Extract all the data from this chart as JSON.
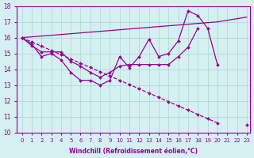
{
  "x": [
    0,
    1,
    2,
    3,
    4,
    5,
    6,
    7,
    8,
    9,
    10,
    11,
    12,
    13,
    14,
    15,
    16,
    17,
    18,
    19,
    20,
    21,
    22,
    23
  ],
  "line_straight_up": [
    16.0,
    16.05,
    16.1,
    16.15,
    16.2,
    16.25,
    16.3,
    16.35,
    16.4,
    16.45,
    16.5,
    16.55,
    16.6,
    16.65,
    16.7,
    16.75,
    16.8,
    16.85,
    16.9,
    16.95,
    17.0,
    17.1,
    17.2,
    17.3
  ],
  "line_zigzag": [
    16.0,
    15.6,
    14.8,
    15.0,
    14.6,
    13.8,
    13.3,
    13.3,
    13.0,
    13.3,
    14.8,
    14.1,
    14.8,
    15.9,
    14.8,
    15.0,
    15.8,
    17.7,
    17.4,
    16.6,
    14.3,
    null,
    null,
    null
  ],
  "line_mid": [
    16.0,
    15.5,
    15.1,
    15.1,
    15.1,
    14.5,
    14.2,
    13.8,
    13.5,
    13.8,
    14.2,
    14.3,
    14.3,
    14.3,
    14.3,
    14.3,
    14.8,
    15.4,
    16.6,
    null,
    null,
    null,
    null,
    null
  ],
  "line_straight_down": [
    16.0,
    15.73,
    15.46,
    15.19,
    14.92,
    14.65,
    14.38,
    14.11,
    13.84,
    13.57,
    13.3,
    13.03,
    12.76,
    12.49,
    12.22,
    11.95,
    11.68,
    11.41,
    11.14,
    10.87,
    10.6,
    null,
    null,
    10.5
  ],
  "line_color": "#990099",
  "bg_color": "#d4f0f0",
  "grid_color": "#aed4d4",
  "xlabel": "Windchill (Refroidissement éolien,°C)",
  "xlim_min": -0.5,
  "xlim_max": 23.3,
  "ylim": [
    10,
    18
  ],
  "yticks": [
    10,
    11,
    12,
    13,
    14,
    15,
    16,
    17,
    18
  ],
  "xticks": [
    0,
    1,
    2,
    3,
    4,
    5,
    6,
    7,
    8,
    9,
    10,
    11,
    12,
    13,
    14,
    15,
    16,
    17,
    18,
    19,
    20,
    21,
    22,
    23
  ]
}
